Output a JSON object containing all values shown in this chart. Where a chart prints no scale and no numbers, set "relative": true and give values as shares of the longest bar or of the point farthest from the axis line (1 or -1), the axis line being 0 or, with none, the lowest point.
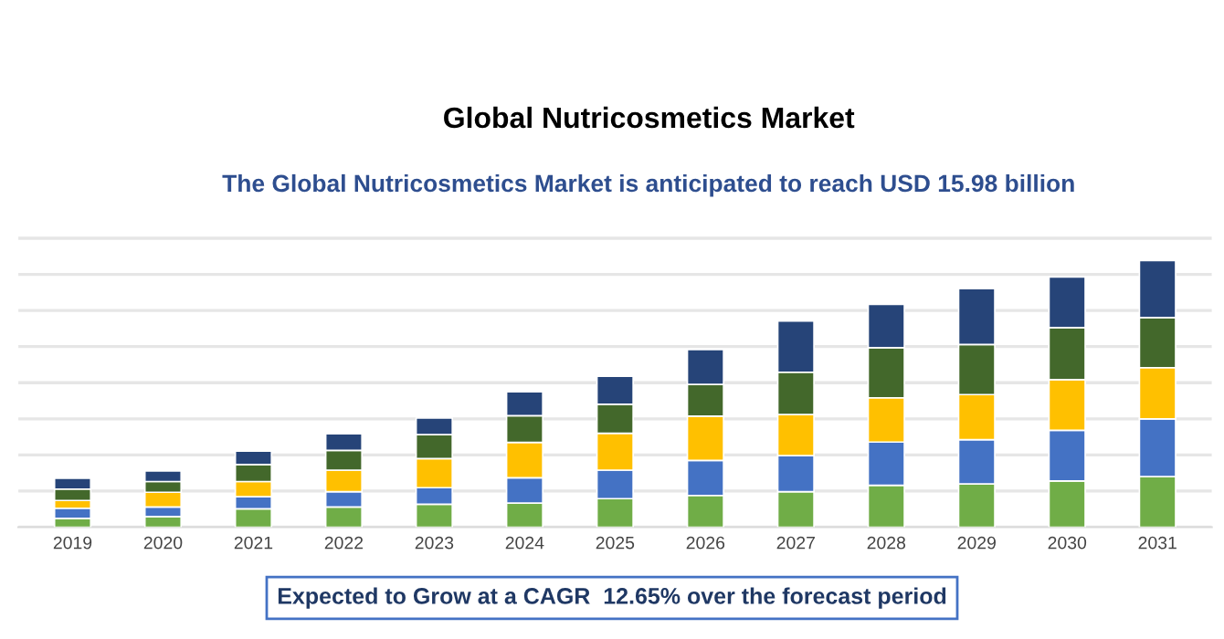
{
  "chart_data": {
    "type": "bar",
    "title": "Global Nutricosmetics Market",
    "subtitle": "The Global Nutricosmetics Market is anticipated to reach USD 15.98 billion",
    "annotations": [
      "Expected to Grow at a CAGR  12.65% over the forecast period"
    ],
    "categories": [
      "2019",
      "2020",
      "2021",
      "2022",
      "2023",
      "2024",
      "2025",
      "2026",
      "2027",
      "2028",
      "2029",
      "2030",
      "2031"
    ],
    "stacked": true,
    "relative": true,
    "grid": "y",
    "legend": false,
    "series": [
      {
        "color": "#70ad47",
        "values": [
          0.033,
          0.04,
          0.069,
          0.076,
          0.086,
          0.09,
          0.107,
          0.119,
          0.133,
          0.157,
          0.162,
          0.173,
          0.19
        ]
      },
      {
        "color": "#4472c4",
        "values": [
          0.038,
          0.036,
          0.045,
          0.057,
          0.062,
          0.095,
          0.107,
          0.131,
          0.135,
          0.162,
          0.166,
          0.19,
          0.216
        ]
      },
      {
        "color": "#ffc000",
        "values": [
          0.029,
          0.055,
          0.057,
          0.081,
          0.109,
          0.133,
          0.138,
          0.166,
          0.154,
          0.166,
          0.169,
          0.19,
          0.192
        ]
      },
      {
        "color": "#43682b",
        "values": [
          0.043,
          0.04,
          0.064,
          0.074,
          0.09,
          0.1,
          0.109,
          0.119,
          0.159,
          0.188,
          0.188,
          0.195,
          0.188
        ]
      },
      {
        "color": "#264478",
        "values": [
          0.04,
          0.04,
          0.05,
          0.062,
          0.062,
          0.09,
          0.105,
          0.131,
          0.192,
          0.162,
          0.209,
          0.19,
          0.214
        ]
      }
    ]
  }
}
